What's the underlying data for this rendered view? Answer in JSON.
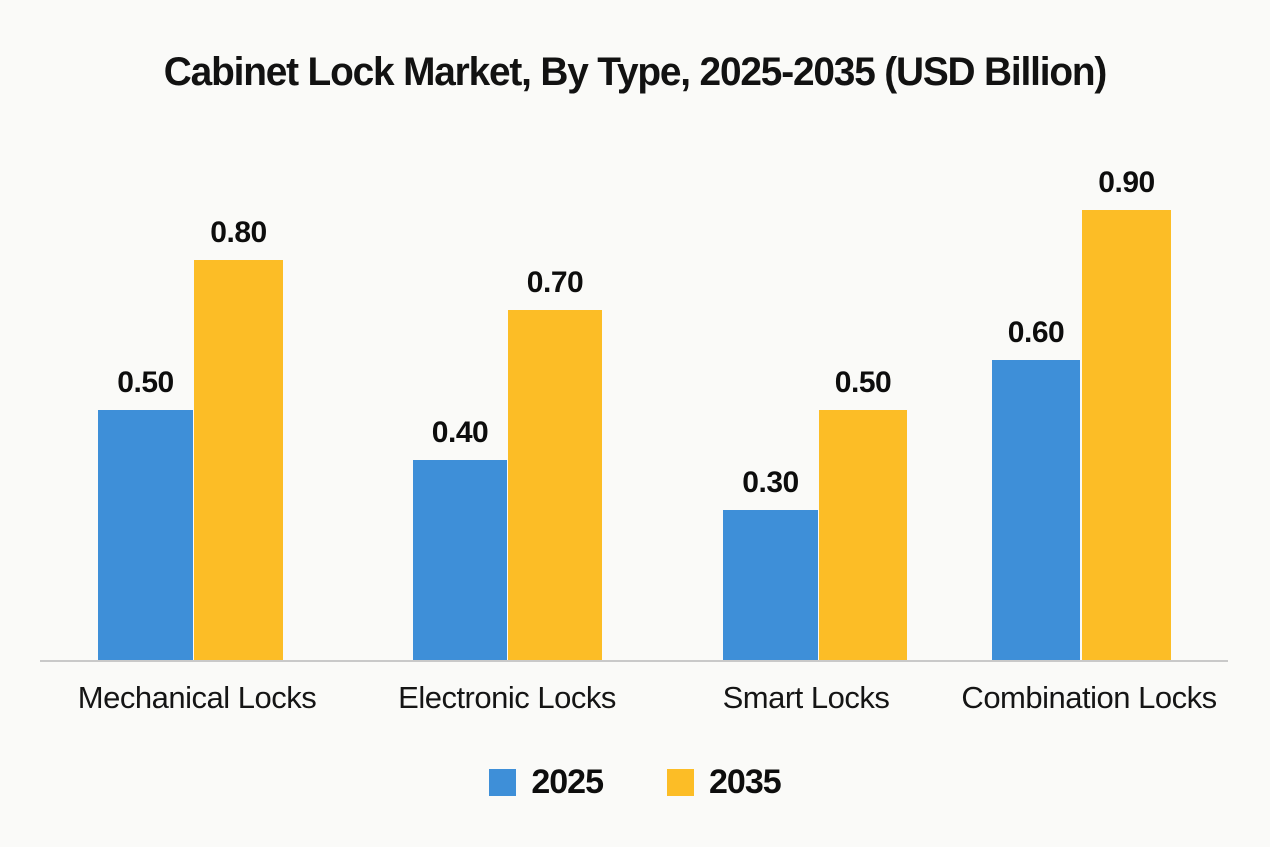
{
  "chart_data": {
    "type": "bar",
    "title": "Cabinet Lock Market, By Type, 2025-2035 (USD Billion)",
    "categories": [
      "Mechanical Locks",
      "Electronic Locks",
      "Smart Locks",
      "Combination Locks"
    ],
    "series": [
      {
        "name": "2025",
        "color": "#3e8fd8",
        "values": [
          0.5,
          0.4,
          0.3,
          0.6
        ],
        "labels": [
          "0.50",
          "0.40",
          "0.30",
          "0.60"
        ]
      },
      {
        "name": "2035",
        "color": "#fcbd26",
        "values": [
          0.8,
          0.7,
          0.5,
          0.9
        ],
        "labels": [
          "0.80",
          "0.70",
          "0.50",
          "0.90"
        ]
      }
    ],
    "ylabel": "",
    "xlabel": "",
    "ylim": [
      0,
      1.0
    ],
    "grid": false,
    "value_labels": true,
    "legend_position": "bottom",
    "axis_line_color": "#c9c9c9",
    "background_color": "#fafaf8",
    "text_color": "#111111"
  }
}
